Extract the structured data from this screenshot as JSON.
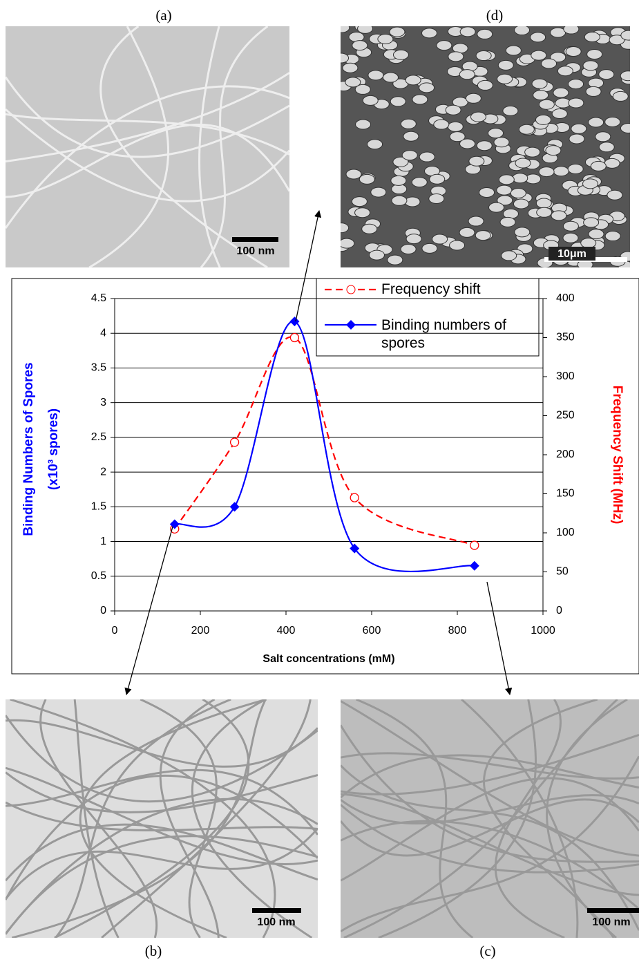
{
  "panels": [
    {
      "label": "(a)",
      "scale_bar": "100 nm"
    },
    {
      "label": "(d)",
      "scale_bar": "10μm"
    },
    {
      "label": "(b)",
      "scale_bar": "100 nm"
    },
    {
      "label": "(c)",
      "scale_bar": "100 nm"
    }
  ],
  "chart_data": {
    "type": "line",
    "x_label": "Salt concentrations (mM)",
    "y_label": [
      "Binding Numbers of Spores",
      "(x10³ spores)"
    ],
    "y2_label": "Frequency Shift (MHz)",
    "x": [
      140,
      280,
      420,
      560,
      840
    ],
    "xlim": [
      0,
      1000
    ],
    "xticks": [
      0,
      200,
      400,
      600,
      800,
      1000
    ],
    "ylim": [
      0,
      4.5
    ],
    "yticks": [
      0,
      0.5,
      1,
      1.5,
      2,
      2.5,
      3,
      3.5,
      4,
      4.5
    ],
    "y2lim": [
      0,
      400
    ],
    "y2ticks": [
      0,
      50,
      100,
      150,
      200,
      250,
      300,
      350,
      400
    ],
    "grid": true,
    "series": [
      {
        "name": "Frequency shift",
        "color": "#ff0000",
        "axis": "y2",
        "dashed": true,
        "marker": "circle",
        "values": [
          105,
          216,
          350,
          145,
          84
        ]
      },
      {
        "name": "Binding numbers of spores",
        "color": "#0000ff",
        "axis": "y",
        "dashed": false,
        "marker": "diamond",
        "values": [
          1.25,
          1.5,
          4.17,
          0.9,
          0.65
        ]
      }
    ]
  }
}
